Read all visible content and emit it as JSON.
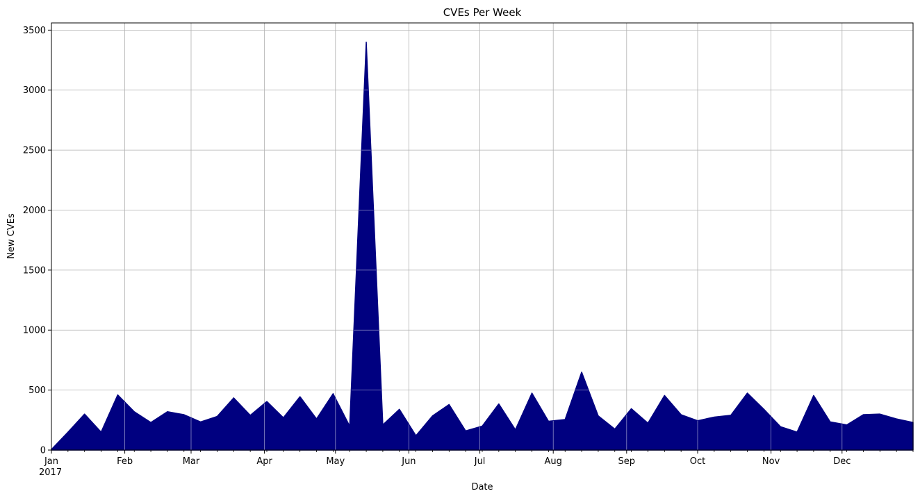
{
  "chart_data": {
    "type": "area",
    "title": "CVEs Per Week",
    "xlabel": "Date",
    "ylabel": "New CVEs",
    "year_label": "2017",
    "x_ticks": [
      "Jan",
      "Feb",
      "Mar",
      "Apr",
      "May",
      "Jun",
      "Jul",
      "Aug",
      "Sep",
      "Oct",
      "Nov",
      "Dec"
    ],
    "y_ticks": [
      0,
      500,
      1000,
      1500,
      2000,
      2500,
      3000,
      3500
    ],
    "xlim": [
      "2017-01-01",
      "2017-12-31"
    ],
    "ylim": [
      0,
      3560
    ],
    "grid": true,
    "fill_color": "#000080",
    "series": [
      {
        "x": [
          "2017-01-01",
          "2017-01-08",
          "2017-01-15",
          "2017-01-22",
          "2017-01-29",
          "2017-02-05",
          "2017-02-12",
          "2017-02-19",
          "2017-02-26",
          "2017-03-05",
          "2017-03-12",
          "2017-03-19",
          "2017-03-26",
          "2017-04-02",
          "2017-04-09",
          "2017-04-16",
          "2017-04-23",
          "2017-04-30",
          "2017-05-07",
          "2017-05-14",
          "2017-05-21",
          "2017-05-28",
          "2017-06-04",
          "2017-06-11",
          "2017-06-18",
          "2017-06-25",
          "2017-07-02",
          "2017-07-09",
          "2017-07-16",
          "2017-07-23",
          "2017-07-30",
          "2017-08-06",
          "2017-08-13",
          "2017-08-20",
          "2017-08-27",
          "2017-09-03",
          "2017-09-10",
          "2017-09-17",
          "2017-09-24",
          "2017-10-01",
          "2017-10-08",
          "2017-10-15",
          "2017-10-22",
          "2017-10-29",
          "2017-11-05",
          "2017-11-12",
          "2017-11-19",
          "2017-11-26",
          "2017-12-03",
          "2017-12-10",
          "2017-12-17",
          "2017-12-24",
          "2017-12-31"
        ],
        "values": [
          5,
          150,
          300,
          150,
          460,
          320,
          230,
          320,
          295,
          235,
          280,
          435,
          290,
          405,
          270,
          445,
          260,
          470,
          200,
          3400,
          210,
          340,
          120,
          285,
          380,
          160,
          200,
          385,
          170,
          475,
          240,
          255,
          650,
          285,
          175,
          345,
          225,
          455,
          295,
          245,
          275,
          290,
          475,
          340,
          195,
          150,
          455,
          235,
          210,
          295,
          300,
          260,
          230
        ]
      }
    ]
  }
}
